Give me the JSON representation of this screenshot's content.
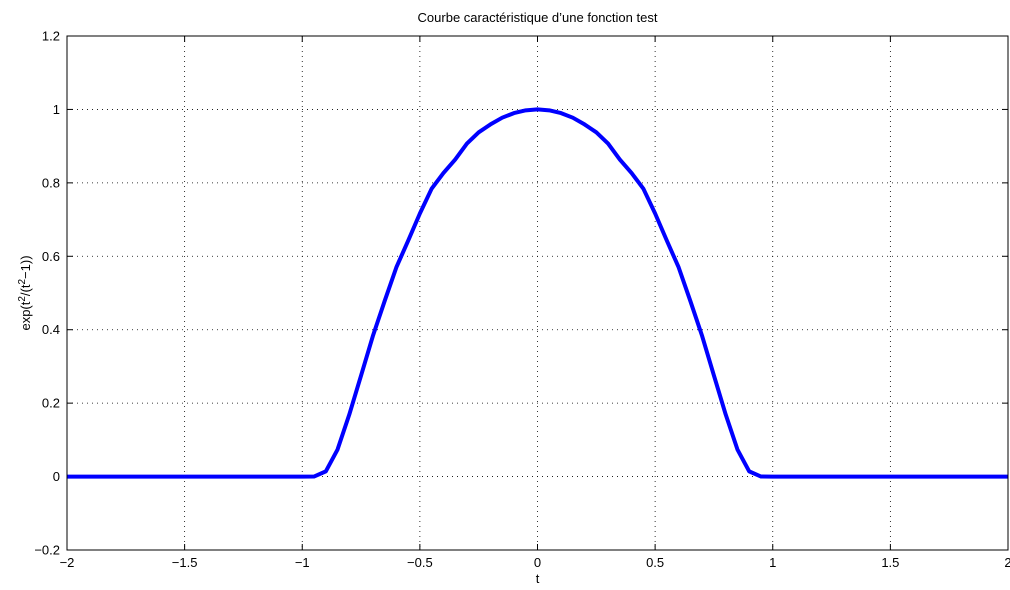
{
  "chart_data": {
    "type": "line",
    "title": "Courbe caractéristique d’une fonction test",
    "xlabel": "t",
    "ylabel": {
      "parts": [
        {
          "text": "exp(t",
          "sup": false
        },
        {
          "text": "2",
          "sup": true
        },
        {
          "text": "/(t",
          "sup": false
        },
        {
          "text": "2",
          "sup": true
        },
        {
          "text": "−1))",
          "sup": false
        }
      ]
    },
    "xlim": [
      -2,
      2
    ],
    "ylim": [
      -0.2,
      1.2
    ],
    "xticks": [
      -2,
      -1.5,
      -1,
      -0.5,
      0,
      0.5,
      1,
      1.5,
      2
    ],
    "xtick_labels": [
      "−2",
      "−1.5",
      "−1",
      "−0.5",
      "0",
      "0.5",
      "1",
      "1.5",
      "2"
    ],
    "yticks": [
      -0.2,
      0,
      0.2,
      0.4,
      0.6,
      0.8,
      1,
      1.2
    ],
    "ytick_labels": [
      "−0.2",
      "0",
      "0.2",
      "0.4",
      "0.6",
      "0.8",
      "1",
      "1.2"
    ],
    "grid": true,
    "line_color": "#0000ff",
    "series": [
      {
        "x": [
          -2,
          -1.5,
          -1,
          -0.95,
          -0.9,
          -0.85,
          -0.8,
          -0.75,
          -0.7,
          -0.65,
          -0.6,
          -0.55,
          -0.5,
          -0.45,
          -0.4,
          -0.35,
          -0.3,
          -0.25,
          -0.2,
          -0.15,
          -0.1,
          -0.05,
          0,
          0.05,
          0.1,
          0.15,
          0.2,
          0.25,
          0.3,
          0.35,
          0.4,
          0.45,
          0.5,
          0.55,
          0.6,
          0.65,
          0.7,
          0.75,
          0.8,
          0.85,
          0.9,
          0.95,
          1,
          1.5,
          2
        ],
        "y": [
          0,
          0,
          0,
          0.0001,
          0.0141,
          0.0736,
          0.169,
          0.2752,
          0.3825,
          0.4777,
          0.5698,
          0.6423,
          0.7165,
          0.7841,
          0.8266,
          0.8635,
          0.9069,
          0.9376,
          0.9592,
          0.9775,
          0.99,
          0.9975,
          1,
          0.9975,
          0.99,
          0.9775,
          0.9592,
          0.9376,
          0.9069,
          0.8635,
          0.8266,
          0.7841,
          0.7165,
          0.6423,
          0.5698,
          0.4777,
          0.3825,
          0.2752,
          0.169,
          0.0736,
          0.0141,
          0.0001,
          0,
          0,
          0
        ]
      }
    ]
  }
}
